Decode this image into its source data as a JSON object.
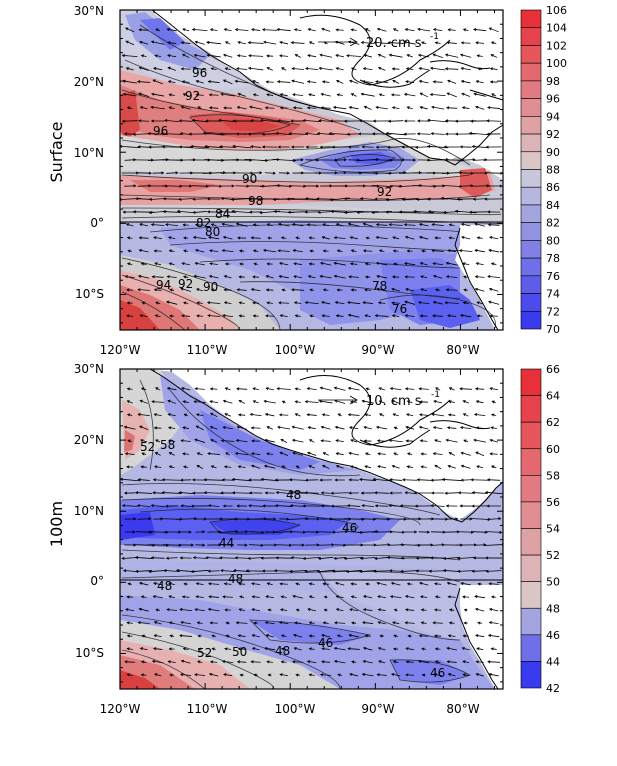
{
  "panels": [
    {
      "id": "surface",
      "side_label": "Surface",
      "ref_arrow_label": "20. cm s",
      "ref_arrow_exp": "-1",
      "colorbar": {
        "labels": [
          "106",
          "104",
          "102",
          "100",
          "98",
          "96",
          "94",
          "92",
          "90",
          "88",
          "86",
          "84",
          "82",
          "80",
          "78",
          "76",
          "74",
          "72",
          "70"
        ]
      },
      "contour_labels": [
        "96",
        "92",
        "96",
        "90",
        "92",
        "98",
        "84",
        "82",
        "80",
        "78",
        "76",
        "94",
        "92",
        "90"
      ]
    },
    {
      "id": "100m",
      "side_label": "100m",
      "ref_arrow_label": "10. cm s",
      "ref_arrow_exp": "-1",
      "colorbar": {
        "labels": [
          "66",
          "64",
          "62",
          "60",
          "58",
          "56",
          "54",
          "52",
          "50",
          "48",
          "46",
          "44",
          "42"
        ]
      },
      "contour_labels": [
        "52",
        "58",
        "48",
        "46",
        "44",
        "48",
        "48",
        "46",
        "52",
        "50",
        "48",
        "46"
      ]
    }
  ],
  "axes": {
    "lat_labels": [
      "30°N",
      "20°N",
      "10°N",
      "0°",
      "10°S"
    ],
    "lon_labels": [
      "120°W",
      "110°W",
      "100°W",
      "90°W",
      "80°W"
    ]
  },
  "colors": {
    "warm_strong": "#e8303a",
    "neutral": "#d9d9d9",
    "cool_strong": "#3a3aee"
  }
}
